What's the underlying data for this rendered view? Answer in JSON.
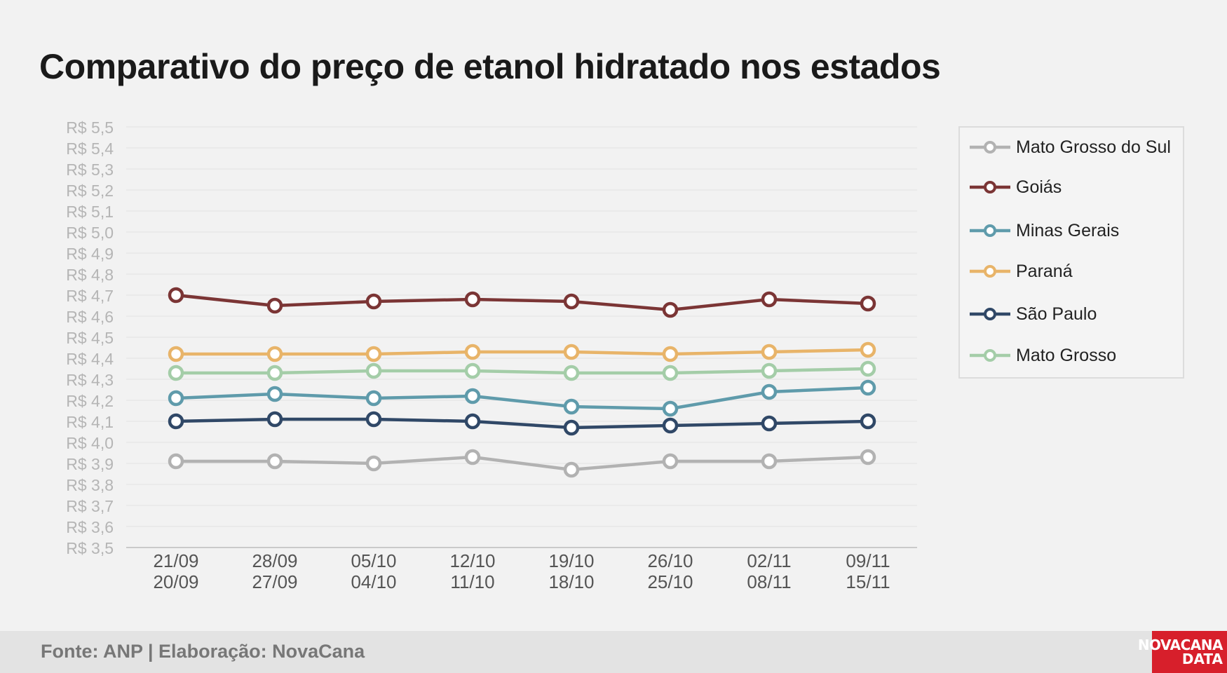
{
  "chart_data": {
    "type": "line",
    "title": "Comparativo do preço de etanol hidratado nos estados",
    "ylim": [
      3.5,
      5.5
    ],
    "y_ticks": [
      "R$ 3,5",
      "R$ 3,6",
      "R$ 3,7",
      "R$ 3,8",
      "R$ 3,9",
      "R$ 4,0",
      "R$ 4,1",
      "R$ 4,2",
      "R$ 4,3",
      "R$ 4,4",
      "R$ 4,5",
      "R$ 4,6",
      "R$ 4,7",
      "R$ 4,8",
      "R$ 4,9",
      "R$ 5,0",
      "R$ 5,1",
      "R$ 5,2",
      "R$ 5,3",
      "R$ 5,4",
      "R$ 5,5"
    ],
    "y_tick_values": [
      3.5,
      3.6,
      3.7,
      3.8,
      3.9,
      4.0,
      4.1,
      4.2,
      4.3,
      4.4,
      4.5,
      4.6,
      4.7,
      4.8,
      4.9,
      5.0,
      5.1,
      5.2,
      5.3,
      5.4,
      5.5
    ],
    "categories": [
      [
        "21/09",
        "20/09"
      ],
      [
        "28/09",
        "27/09"
      ],
      [
        "05/10",
        "04/10"
      ],
      [
        "12/10",
        "11/10"
      ],
      [
        "19/10",
        "18/10"
      ],
      [
        "26/10",
        "25/10"
      ],
      [
        "02/11",
        "08/11"
      ],
      [
        "09/11",
        "15/11"
      ]
    ],
    "grid": true,
    "legend_position": "right",
    "series": [
      {
        "name": "Mato Grosso do Sul",
        "color": "#b2b2b2",
        "values": [
          3.91,
          3.91,
          3.9,
          3.93,
          3.87,
          3.91,
          3.91,
          3.93
        ]
      },
      {
        "name": "Goiás",
        "color": "#7b3535",
        "values": [
          4.7,
          4.65,
          4.67,
          4.68,
          4.67,
          4.63,
          4.68,
          4.66
        ]
      },
      {
        "name": "Minas Gerais",
        "color": "#5f9bab",
        "values": [
          4.21,
          4.23,
          4.21,
          4.22,
          4.17,
          4.16,
          4.24,
          4.26
        ]
      },
      {
        "name": "Paraná",
        "color": "#e8b469",
        "values": [
          4.42,
          4.42,
          4.42,
          4.43,
          4.43,
          4.42,
          4.43,
          4.44
        ]
      },
      {
        "name": "São Paulo",
        "color": "#304867",
        "values": [
          4.1,
          4.11,
          4.11,
          4.1,
          4.07,
          4.08,
          4.09,
          4.1
        ]
      },
      {
        "name": "Mato Grosso",
        "color": "#a4cda8",
        "values": [
          4.33,
          4.33,
          4.34,
          4.34,
          4.33,
          4.33,
          4.34,
          4.35
        ]
      }
    ]
  },
  "footer": {
    "source": "Fonte: ANP | Elaboração: NovaCana",
    "logo_line1": "NOVACANA",
    "logo_line2": "DATA"
  }
}
